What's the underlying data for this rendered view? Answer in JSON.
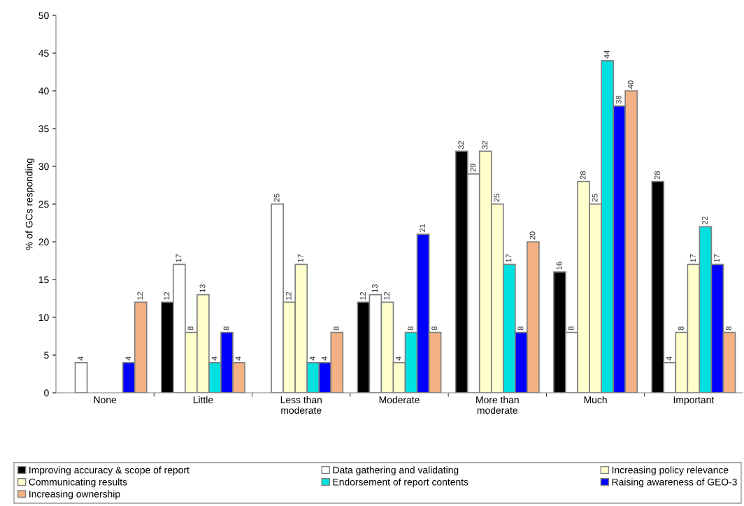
{
  "chart_data": {
    "type": "bar",
    "ylabel": "% of GCs responding",
    "categories": [
      "None",
      "Little",
      "Less than\nmoderate",
      "Moderate",
      "More than\nmoderate",
      "Much",
      "Important"
    ],
    "series": [
      {
        "name": "Improving accuracy & scope of report",
        "color": "#000000",
        "values": [
          null,
          12,
          null,
          12,
          32,
          16,
          28
        ]
      },
      {
        "name": "Data gathering and validating",
        "color": "#ffffff",
        "values": [
          4,
          17,
          25,
          13,
          29,
          8,
          4
        ]
      },
      {
        "name": "Increasing policy relevance",
        "color": "#ffffcc",
        "values": [
          null,
          8,
          12,
          12,
          32,
          28,
          8
        ]
      },
      {
        "name": "Communicating results",
        "color": "#ffffcc",
        "values": [
          null,
          13,
          17,
          4,
          25,
          25,
          17
        ]
      },
      {
        "name": "Endorsement of report contents",
        "color": "#00e0e0",
        "values": [
          null,
          4,
          4,
          8,
          17,
          44,
          22
        ]
      },
      {
        "name": "Raising awareness of GEO-3",
        "color": "#0000ff",
        "values": [
          4,
          8,
          4,
          21,
          8,
          38,
          17
        ]
      },
      {
        "name": "Increasing ownership",
        "color": "#f4b183",
        "values": [
          12,
          4,
          8,
          8,
          20,
          40,
          8
        ]
      }
    ],
    "ylim": [
      0,
      50
    ],
    "yticks": [
      0,
      5,
      10,
      15,
      20,
      25,
      30,
      35,
      40,
      45,
      50
    ],
    "data_labels": true,
    "legend": "bottom",
    "grid": false
  }
}
